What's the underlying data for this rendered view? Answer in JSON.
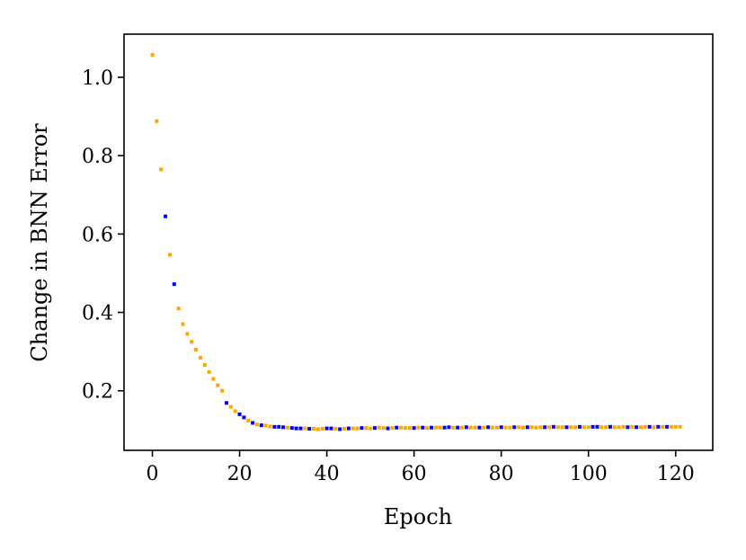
{
  "chart_data": {
    "type": "scatter",
    "xlabel": "Epoch",
    "ylabel": "Change in BNN Error",
    "xlim": [
      -6.5,
      128.5
    ],
    "ylim": [
      0.048,
      1.11
    ],
    "xticks": [
      0,
      20,
      40,
      60,
      80,
      100,
      120
    ],
    "xtick_labels": [
      "0",
      "20",
      "40",
      "60",
      "80",
      "100",
      "120"
    ],
    "yticks": [
      0.2,
      0.4,
      0.6,
      0.8,
      1.0
    ],
    "ytick_labels": [
      "0.2",
      "0.4",
      "0.6",
      "0.8",
      "1.0"
    ],
    "grid": false,
    "colors": {
      "orange": "#ffa500",
      "blue": "#0000ff"
    },
    "points": [
      {
        "x": 0,
        "y": 1.057,
        "c": "orange"
      },
      {
        "x": 1,
        "y": 0.888,
        "c": "orange"
      },
      {
        "x": 2,
        "y": 0.765,
        "c": "orange"
      },
      {
        "x": 3,
        "y": 0.645,
        "c": "blue"
      },
      {
        "x": 4,
        "y": 0.547,
        "c": "orange"
      },
      {
        "x": 5,
        "y": 0.472,
        "c": "blue"
      },
      {
        "x": 6,
        "y": 0.41,
        "c": "orange"
      },
      {
        "x": 7,
        "y": 0.37,
        "c": "orange"
      },
      {
        "x": 8,
        "y": 0.345,
        "c": "orange"
      },
      {
        "x": 9,
        "y": 0.325,
        "c": "orange"
      },
      {
        "x": 10,
        "y": 0.305,
        "c": "orange"
      },
      {
        "x": 11,
        "y": 0.284,
        "c": "orange"
      },
      {
        "x": 12,
        "y": 0.266,
        "c": "orange"
      },
      {
        "x": 13,
        "y": 0.248,
        "c": "orange"
      },
      {
        "x": 14,
        "y": 0.23,
        "c": "orange"
      },
      {
        "x": 15,
        "y": 0.214,
        "c": "orange"
      },
      {
        "x": 16,
        "y": 0.2,
        "c": "orange"
      },
      {
        "x": 17,
        "y": 0.169,
        "c": "blue"
      },
      {
        "x": 18,
        "y": 0.159,
        "c": "orange"
      },
      {
        "x": 19,
        "y": 0.148,
        "c": "orange"
      },
      {
        "x": 20,
        "y": 0.14,
        "c": "blue"
      },
      {
        "x": 21,
        "y": 0.132,
        "c": "blue"
      },
      {
        "x": 22,
        "y": 0.124,
        "c": "orange"
      },
      {
        "x": 23,
        "y": 0.118,
        "c": "blue"
      },
      {
        "x": 24,
        "y": 0.114,
        "c": "orange"
      },
      {
        "x": 25,
        "y": 0.112,
        "c": "blue"
      },
      {
        "x": 26,
        "y": 0.111,
        "c": "orange"
      },
      {
        "x": 27,
        "y": 0.109,
        "c": "orange"
      },
      {
        "x": 28,
        "y": 0.108,
        "c": "blue"
      },
      {
        "x": 29,
        "y": 0.108,
        "c": "blue"
      },
      {
        "x": 30,
        "y": 0.107,
        "c": "blue"
      },
      {
        "x": 31,
        "y": 0.106,
        "c": "orange"
      },
      {
        "x": 32,
        "y": 0.105,
        "c": "blue"
      },
      {
        "x": 33,
        "y": 0.104,
        "c": "blue"
      },
      {
        "x": 34,
        "y": 0.104,
        "c": "blue"
      },
      {
        "x": 35,
        "y": 0.104,
        "c": "orange"
      },
      {
        "x": 36,
        "y": 0.103,
        "c": "blue"
      },
      {
        "x": 37,
        "y": 0.103,
        "c": "orange"
      },
      {
        "x": 38,
        "y": 0.102,
        "c": "orange"
      },
      {
        "x": 39,
        "y": 0.103,
        "c": "orange"
      },
      {
        "x": 40,
        "y": 0.104,
        "c": "blue"
      },
      {
        "x": 41,
        "y": 0.104,
        "c": "blue"
      },
      {
        "x": 42,
        "y": 0.103,
        "c": "orange"
      },
      {
        "x": 43,
        "y": 0.102,
        "c": "blue"
      },
      {
        "x": 44,
        "y": 0.103,
        "c": "orange"
      },
      {
        "x": 45,
        "y": 0.104,
        "c": "blue"
      },
      {
        "x": 46,
        "y": 0.104,
        "c": "orange"
      },
      {
        "x": 47,
        "y": 0.104,
        "c": "orange"
      },
      {
        "x": 48,
        "y": 0.105,
        "c": "blue"
      },
      {
        "x": 49,
        "y": 0.105,
        "c": "orange"
      },
      {
        "x": 50,
        "y": 0.104,
        "c": "orange"
      },
      {
        "x": 51,
        "y": 0.105,
        "c": "blue"
      },
      {
        "x": 52,
        "y": 0.106,
        "c": "orange"
      },
      {
        "x": 53,
        "y": 0.105,
        "c": "orange"
      },
      {
        "x": 54,
        "y": 0.104,
        "c": "blue"
      },
      {
        "x": 55,
        "y": 0.105,
        "c": "orange"
      },
      {
        "x": 56,
        "y": 0.106,
        "c": "blue"
      },
      {
        "x": 57,
        "y": 0.106,
        "c": "orange"
      },
      {
        "x": 58,
        "y": 0.105,
        "c": "orange"
      },
      {
        "x": 59,
        "y": 0.105,
        "c": "orange"
      },
      {
        "x": 60,
        "y": 0.105,
        "c": "blue"
      },
      {
        "x": 61,
        "y": 0.106,
        "c": "orange"
      },
      {
        "x": 62,
        "y": 0.106,
        "c": "blue"
      },
      {
        "x": 63,
        "y": 0.105,
        "c": "orange"
      },
      {
        "x": 64,
        "y": 0.106,
        "c": "blue"
      },
      {
        "x": 65,
        "y": 0.106,
        "c": "orange"
      },
      {
        "x": 66,
        "y": 0.106,
        "c": "orange"
      },
      {
        "x": 67,
        "y": 0.106,
        "c": "blue"
      },
      {
        "x": 68,
        "y": 0.107,
        "c": "blue"
      },
      {
        "x": 69,
        "y": 0.106,
        "c": "orange"
      },
      {
        "x": 70,
        "y": 0.106,
        "c": "blue"
      },
      {
        "x": 71,
        "y": 0.106,
        "c": "orange"
      },
      {
        "x": 72,
        "y": 0.107,
        "c": "blue"
      },
      {
        "x": 73,
        "y": 0.106,
        "c": "orange"
      },
      {
        "x": 74,
        "y": 0.106,
        "c": "orange"
      },
      {
        "x": 75,
        "y": 0.106,
        "c": "blue"
      },
      {
        "x": 76,
        "y": 0.106,
        "c": "orange"
      },
      {
        "x": 77,
        "y": 0.107,
        "c": "blue"
      },
      {
        "x": 78,
        "y": 0.106,
        "c": "orange"
      },
      {
        "x": 79,
        "y": 0.106,
        "c": "orange"
      },
      {
        "x": 80,
        "y": 0.107,
        "c": "blue"
      },
      {
        "x": 81,
        "y": 0.106,
        "c": "orange"
      },
      {
        "x": 82,
        "y": 0.106,
        "c": "orange"
      },
      {
        "x": 83,
        "y": 0.107,
        "c": "blue"
      },
      {
        "x": 84,
        "y": 0.107,
        "c": "orange"
      },
      {
        "x": 85,
        "y": 0.106,
        "c": "orange"
      },
      {
        "x": 86,
        "y": 0.107,
        "c": "blue"
      },
      {
        "x": 87,
        "y": 0.107,
        "c": "orange"
      },
      {
        "x": 88,
        "y": 0.106,
        "c": "orange"
      },
      {
        "x": 89,
        "y": 0.107,
        "c": "orange"
      },
      {
        "x": 90,
        "y": 0.107,
        "c": "blue"
      },
      {
        "x": 91,
        "y": 0.107,
        "c": "orange"
      },
      {
        "x": 92,
        "y": 0.108,
        "c": "blue"
      },
      {
        "x": 93,
        "y": 0.107,
        "c": "orange"
      },
      {
        "x": 94,
        "y": 0.107,
        "c": "orange"
      },
      {
        "x": 95,
        "y": 0.107,
        "c": "blue"
      },
      {
        "x": 96,
        "y": 0.107,
        "c": "orange"
      },
      {
        "x": 97,
        "y": 0.107,
        "c": "orange"
      },
      {
        "x": 98,
        "y": 0.108,
        "c": "blue"
      },
      {
        "x": 99,
        "y": 0.107,
        "c": "orange"
      },
      {
        "x": 100,
        "y": 0.107,
        "c": "orange"
      },
      {
        "x": 101,
        "y": 0.108,
        "c": "blue"
      },
      {
        "x": 102,
        "y": 0.108,
        "c": "blue"
      },
      {
        "x": 103,
        "y": 0.107,
        "c": "orange"
      },
      {
        "x": 104,
        "y": 0.107,
        "c": "orange"
      },
      {
        "x": 105,
        "y": 0.108,
        "c": "blue"
      },
      {
        "x": 106,
        "y": 0.107,
        "c": "orange"
      },
      {
        "x": 107,
        "y": 0.107,
        "c": "orange"
      },
      {
        "x": 108,
        "y": 0.108,
        "c": "orange"
      },
      {
        "x": 109,
        "y": 0.107,
        "c": "blue"
      },
      {
        "x": 110,
        "y": 0.108,
        "c": "orange"
      },
      {
        "x": 111,
        "y": 0.107,
        "c": "blue"
      },
      {
        "x": 112,
        "y": 0.107,
        "c": "orange"
      },
      {
        "x": 113,
        "y": 0.108,
        "c": "orange"
      },
      {
        "x": 114,
        "y": 0.108,
        "c": "blue"
      },
      {
        "x": 115,
        "y": 0.107,
        "c": "orange"
      },
      {
        "x": 116,
        "y": 0.108,
        "c": "blue"
      },
      {
        "x": 117,
        "y": 0.108,
        "c": "orange"
      },
      {
        "x": 118,
        "y": 0.108,
        "c": "blue"
      },
      {
        "x": 119,
        "y": 0.108,
        "c": "orange"
      },
      {
        "x": 120,
        "y": 0.108,
        "c": "orange"
      },
      {
        "x": 121,
        "y": 0.108,
        "c": "orange"
      }
    ]
  }
}
